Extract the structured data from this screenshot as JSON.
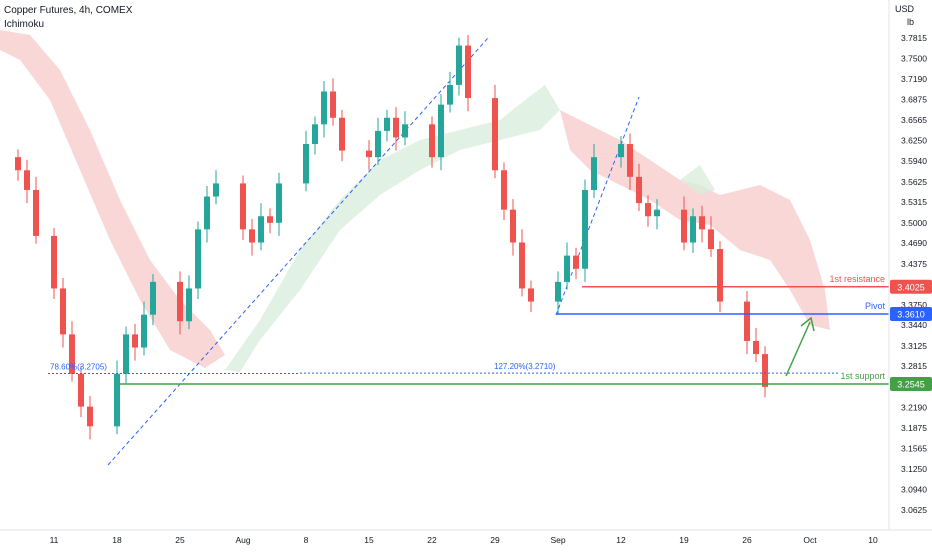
{
  "header": {
    "title": "Copper Futures, 4h, COMEX",
    "indicator": "Ichimoku"
  },
  "axis": {
    "unit_currency": "USD",
    "unit_measure": "lb"
  },
  "colors": {
    "up": "#26a69a",
    "down": "#ef5350",
    "resistance": "#ef5350",
    "pivot": "#2962ff",
    "support": "#43a047",
    "fib_blue": "#2962ff",
    "cloud_red": "#f8c9c9",
    "cloud_green": "#d7eedb"
  },
  "chart_data": {
    "type": "candlestick",
    "x": [
      "Jul 7",
      "Jul 8",
      "Jul 9",
      "Jul 11",
      "Jul 12",
      "Jul 13",
      "Jul 14",
      "Jul 15",
      "Jul 18",
      "Jul 19",
      "Jul 20",
      "Jul 21",
      "Jul 22",
      "Jul 25",
      "Jul 26",
      "Jul 27",
      "Jul 28",
      "Jul 29",
      "Aug 1",
      "Aug 2",
      "Aug 3",
      "Aug 4",
      "Aug 5",
      "Aug 8",
      "Aug 9",
      "Aug 10",
      "Aug 11",
      "Aug 12",
      "Aug 15",
      "Aug 16",
      "Aug 17",
      "Aug 18",
      "Aug 19",
      "Aug 22",
      "Aug 23",
      "Aug 24",
      "Aug 25",
      "Aug 26",
      "Aug 29",
      "Aug 30",
      "Aug 31",
      "Sep 1",
      "Sep 2",
      "Sep 5",
      "Sep 6",
      "Sep 7",
      "Sep 8",
      "Sep 9",
      "Sep 12",
      "Sep 13",
      "Sep 14",
      "Sep 15",
      "Sep 16",
      "Sep 19",
      "Sep 20",
      "Sep 21",
      "Sep 22",
      "Sep 23",
      "Sep 26",
      "Sep 27",
      "Sep 28"
    ],
    "close": [
      3.58,
      3.55,
      3.48,
      3.4,
      3.33,
      3.27,
      3.22,
      3.19,
      3.27,
      3.33,
      3.31,
      3.36,
      3.41,
      3.35,
      3.4,
      3.49,
      3.54,
      3.56,
      3.49,
      3.47,
      3.51,
      3.5,
      3.56,
      3.62,
      3.65,
      3.7,
      3.66,
      3.61,
      3.6,
      3.64,
      3.66,
      3.63,
      3.65,
      3.6,
      3.68,
      3.71,
      3.77,
      3.69,
      3.58,
      3.52,
      3.47,
      3.4,
      3.38,
      3.41,
      3.45,
      3.43,
      3.55,
      3.6,
      3.62,
      3.57,
      3.53,
      3.51,
      3.52,
      3.47,
      3.51,
      3.49,
      3.46,
      3.38,
      3.32,
      3.3,
      3.25
    ],
    "yticks": [
      "3.7815",
      "3.7500",
      "3.7190",
      "3.6875",
      "3.6565",
      "3.6250",
      "3.5940",
      "3.5625",
      "3.5315",
      "3.5000",
      "3.4690",
      "3.4375",
      "3.3750",
      "3.3440",
      "3.3125",
      "3.2815",
      "3.2190",
      "3.1875",
      "3.1565",
      "3.1250",
      "3.0940",
      "3.0625"
    ],
    "xticks": [
      {
        "label": "11",
        "value": "Jul 11"
      },
      {
        "label": "18",
        "value": "Jul 18"
      },
      {
        "label": "25",
        "value": "Jul 25"
      },
      {
        "label": "Aug",
        "value": "Aug 1"
      },
      {
        "label": "8",
        "value": "Aug 8"
      },
      {
        "label": "15",
        "value": "Aug 15"
      },
      {
        "label": "22",
        "value": "Aug 22"
      },
      {
        "label": "29",
        "value": "Aug 29"
      },
      {
        "label": "Sep",
        "value": "Sep 5"
      },
      {
        "label": "12",
        "value": "Sep 12"
      },
      {
        "label": "19",
        "value": "Sep 19"
      },
      {
        "label": "26",
        "value": "Sep 26"
      },
      {
        "label": "Oct",
        "value": "Oct 3"
      },
      {
        "label": "10",
        "value": "Oct 10"
      }
    ],
    "levels": [
      {
        "label": "1st resistance",
        "price": 3.4025,
        "price_label": "3.4025",
        "color": "#ef5350"
      },
      {
        "label": "Pivot",
        "price": 3.361,
        "price_label": "3.3610",
        "color": "#2962ff"
      },
      {
        "label": "1st support",
        "price": 3.2545,
        "price_label": "3.2545",
        "color": "#43a047"
      }
    ],
    "fib": [
      {
        "label": "78.60%(3.2705)",
        "price": 3.2705
      },
      {
        "label": "127.20%(3.2710)",
        "price": 3.271
      }
    ],
    "ylim": [
      3.04,
      3.8
    ],
    "grid": false
  }
}
